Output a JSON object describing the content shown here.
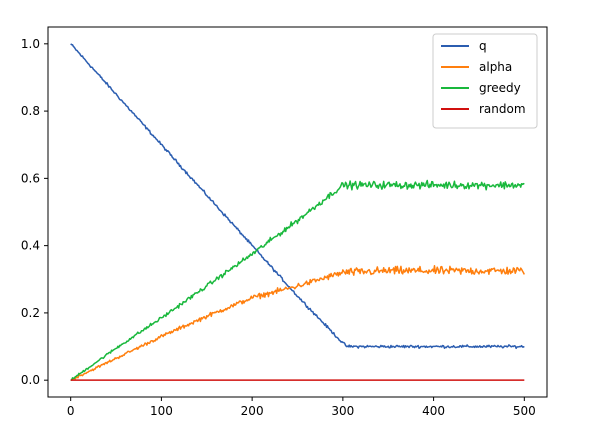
{
  "chart_data": {
    "type": "line",
    "title": "",
    "xlabel": "",
    "ylabel": "",
    "xlim": [
      -25,
      525
    ],
    "ylim": [
      -0.05,
      1.05
    ],
    "xticks": [
      0,
      100,
      200,
      300,
      400,
      500
    ],
    "yticks": [
      0.0,
      0.2,
      0.4,
      0.6,
      0.8,
      1.0
    ],
    "xtick_labels": [
      "0",
      "100",
      "200",
      "300",
      "400",
      "500"
    ],
    "ytick_labels": [
      "0.0",
      "0.2",
      "0.4",
      "0.6",
      "0.8",
      "1.0"
    ],
    "grid": false,
    "legend_position": "top-right",
    "series": [
      {
        "name": "q",
        "color": "#2b5db0",
        "x": [
          0,
          50,
          100,
          150,
          200,
          250,
          300,
          305,
          350,
          400,
          450,
          500
        ],
        "y": [
          1.0,
          0.85,
          0.7,
          0.55,
          0.4,
          0.25,
          0.11,
          0.1,
          0.1,
          0.1,
          0.1,
          0.1
        ]
      },
      {
        "name": "alpha",
        "color": "#ff7f0e",
        "x": [
          0,
          50,
          100,
          150,
          200,
          250,
          300,
          350,
          400,
          450,
          500
        ],
        "y": [
          0.0,
          0.065,
          0.13,
          0.19,
          0.245,
          0.28,
          0.32,
          0.325,
          0.325,
          0.325,
          0.325
        ]
      },
      {
        "name": "greedy",
        "color": "#19b83c",
        "x": [
          0,
          50,
          100,
          150,
          200,
          250,
          300,
          350,
          400,
          450,
          500
        ],
        "y": [
          0.0,
          0.095,
          0.185,
          0.28,
          0.375,
          0.475,
          0.58,
          0.58,
          0.58,
          0.58,
          0.58
        ]
      },
      {
        "name": "random",
        "color": "#d1100e",
        "x": [
          0,
          500
        ],
        "y": [
          0.0,
          0.0
        ]
      }
    ]
  }
}
